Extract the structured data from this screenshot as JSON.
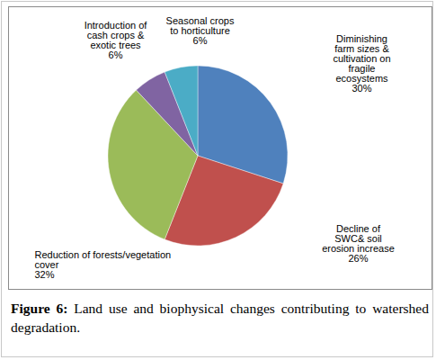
{
  "chart_data": {
    "type": "pie",
    "caption": "Figure 6: Land use and biophysical changes contributing to watershed degradation.",
    "categories": [
      "Diminishing farm sizes & cultivation on fragile ecosystems",
      "Decline of SWC& soil erosion increase",
      "Reduction of forests/vegetation cover",
      "Introduction of cash crops & exotic trees",
      "Seasonal crops to horticulture"
    ],
    "values": [
      30,
      26,
      32,
      6,
      6
    ],
    "value_labels": [
      "30%",
      "26%",
      "32%",
      "6%",
      "6%"
    ],
    "colors": [
      "#4f81bd",
      "#c0504d",
      "#9bbb59",
      "#8064a2",
      "#4bacc6"
    ],
    "data_labels": true
  }
}
